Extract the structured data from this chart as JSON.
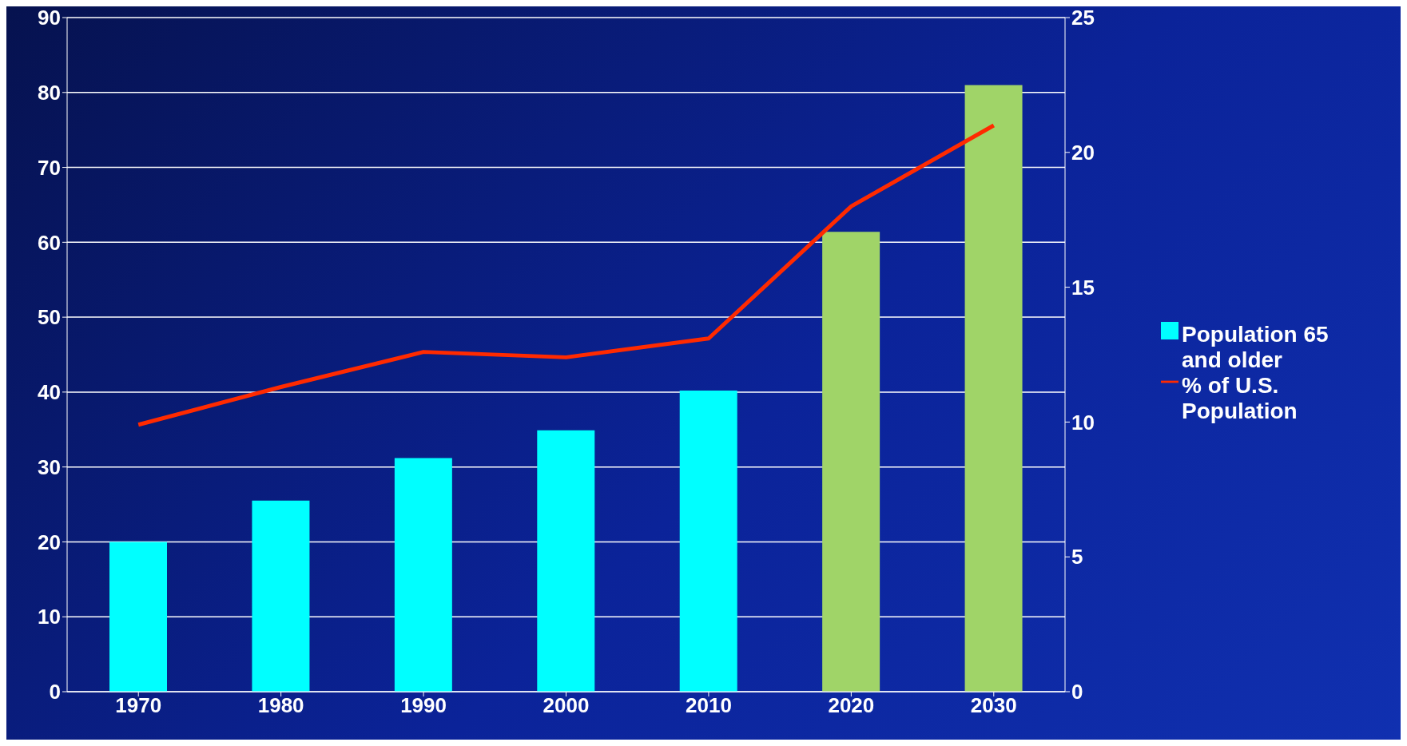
{
  "chart_data": {
    "type": "bar",
    "categories": [
      "1970",
      "1980",
      "1990",
      "2000",
      "2010",
      "2020",
      "2030"
    ],
    "series": [
      {
        "name": "Population 65 and older",
        "color": "#00ffff",
        "colors": [
          "#00ffff",
          "#00ffff",
          "#00ffff",
          "#00ffff",
          "#00ffff",
          "#a0d468",
          "#a0d468"
        ],
        "values": [
          20.0,
          25.5,
          31.2,
          34.9,
          40.2,
          61.4,
          81.0
        ]
      },
      {
        "name": "% of U.S. Population",
        "type": "line",
        "axis": "y2",
        "color": "#ff2a00",
        "values": [
          9.9,
          11.3,
          12.6,
          12.4,
          13.1,
          18.0,
          21.0
        ]
      }
    ],
    "ylim": [
      0,
      90
    ],
    "yticks": [
      0,
      10,
      20,
      30,
      40,
      50,
      60,
      70,
      80,
      90
    ],
    "y2lim": [
      0,
      25
    ],
    "y2ticks": [
      0,
      5,
      10,
      15,
      20,
      25
    ],
    "grid": "y",
    "legend": "right",
    "marker": "none",
    "line_style": "solid"
  }
}
